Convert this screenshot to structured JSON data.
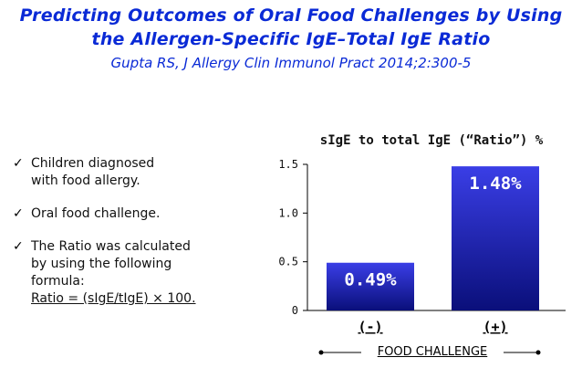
{
  "header": {
    "title_line1": "Predicting Outcomes of Oral Food Challenges by Using",
    "title_line2": "the Allergen-Specific IgE–Total IgE Ratio",
    "citation": "Gupta RS, J Allergy Clin Immunol Pract  2014;2:300-5"
  },
  "bullets": {
    "check_icon": "check-mark",
    "items": [
      {
        "line1": "Children diagnosed",
        "line2": "with food allergy."
      },
      {
        "line1": "Oral food challenge."
      },
      {
        "line1": "The Ratio was calculated",
        "line2": "by using the following",
        "line3": "formula:",
        "formula": "Ratio = (sIgE/tIgE) × 100."
      }
    ]
  },
  "chart_data": {
    "type": "bar",
    "title": "sIgE to total IgE (“Ratio”) %",
    "xlabel": "FOOD CHALLENGE",
    "ylabel": "",
    "categories": [
      "(-)",
      "(+)"
    ],
    "values": [
      0.49,
      1.48
    ],
    "data_labels": [
      "0.49%",
      "1.48%"
    ],
    "ylim": [
      0,
      1.5
    ],
    "yticks": [
      0,
      0.5,
      1.0,
      1.5
    ],
    "ytick_labels": [
      "0",
      "0.5",
      "1.0",
      "1.5"
    ],
    "grid": false,
    "bar_color_top": "#3a3ee6",
    "bar_color_bottom": "#0a0f7a"
  }
}
